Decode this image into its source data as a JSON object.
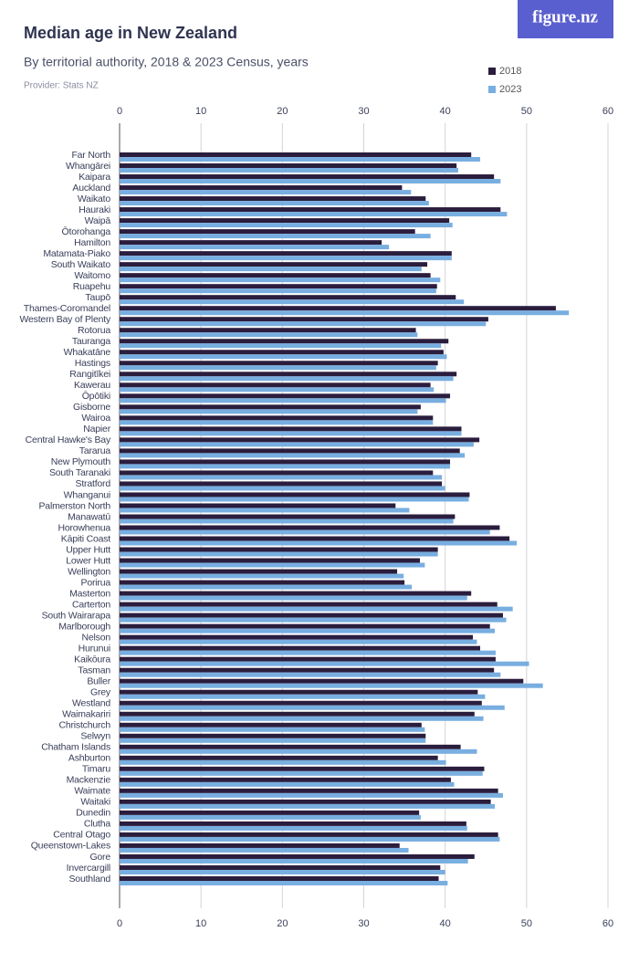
{
  "logo": "figure.nz",
  "chart_data": {
    "type": "barh",
    "title": "Median age in New Zealand",
    "subtitle": "By territorial authority, 2018 & 2023 Census, years",
    "provider": "Provider: Stats NZ",
    "categories": [
      "Far North",
      "Whangārei",
      "Kaipara",
      "Auckland",
      "Waikato",
      "Hauraki",
      "Waipā",
      "Ōtorohanga",
      "Hamilton",
      "Matamata-Piako",
      "South Waikato",
      "Waitomo",
      "Ruapehu",
      "Taupō",
      "Thames-Coromandel",
      "Western Bay of Plenty",
      "Rotorua",
      "Tauranga",
      "Whakatāne",
      "Hastings",
      "Rangitīkei",
      "Kawerau",
      "Ōpōtiki",
      "Gisborne",
      "Wairoa",
      "Napier",
      "Central Hawke's Bay",
      "Tararua",
      "New Plymouth",
      "South Taranaki",
      "Stratford",
      "Whanganui",
      "Palmerston North",
      "Manawatū",
      "Horowhenua",
      "Kāpiti Coast",
      "Upper Hutt",
      "Lower Hutt",
      "Wellington",
      "Porirua",
      "Masterton",
      "Carterton",
      "South Wairarapa",
      "Marlborough",
      "Nelson",
      "Hurunui",
      "Kaikōura",
      "Tasman",
      "Buller",
      "Grey",
      "Westland",
      "Waimakariri",
      "Christchurch",
      "Selwyn",
      "Chatham Islands",
      "Ashburton",
      "Timaru",
      "Mackenzie",
      "Waimate",
      "Waitaki",
      "Dunedin",
      "Clutha",
      "Central Otago",
      "Queenstown-Lakes",
      "Gore",
      "Invercargill",
      "Southland"
    ],
    "series": [
      {
        "name": "2018",
        "color": "#2b1d3d",
        "values": [
          43.2,
          41.4,
          46.0,
          34.7,
          37.6,
          46.8,
          40.5,
          36.3,
          32.2,
          40.8,
          37.8,
          38.2,
          39.0,
          41.3,
          53.6,
          45.3,
          36.4,
          40.4,
          39.8,
          39.1,
          41.4,
          38.2,
          40.6,
          37.0,
          38.5,
          42.0,
          44.2,
          41.8,
          40.6,
          38.5,
          39.6,
          43.0,
          33.9,
          41.2,
          46.7,
          47.9,
          39.1,
          36.9,
          34.1,
          35.0,
          43.2,
          46.4,
          47.1,
          45.5,
          43.4,
          44.3,
          46.2,
          46.0,
          49.6,
          44.0,
          44.5,
          43.6,
          37.1,
          37.6,
          41.9,
          39.1,
          44.8,
          40.7,
          46.5,
          45.6,
          36.8,
          42.6,
          46.5,
          34.4,
          43.6,
          39.4,
          39.2
        ]
      },
      {
        "name": "2023",
        "color": "#78aee0",
        "values": [
          44.3,
          41.6,
          46.8,
          35.8,
          38.0,
          47.6,
          40.9,
          38.2,
          33.1,
          40.8,
          37.1,
          39.4,
          38.9,
          42.3,
          55.2,
          45.0,
          36.6,
          39.5,
          40.2,
          38.9,
          41.0,
          38.6,
          40.1,
          36.6,
          38.5,
          42.0,
          43.5,
          42.4,
          40.6,
          39.6,
          40.0,
          42.9,
          35.6,
          41.0,
          45.5,
          48.8,
          39.1,
          37.5,
          34.9,
          35.9,
          42.7,
          48.3,
          47.5,
          46.1,
          43.9,
          46.2,
          50.3,
          46.8,
          52.0,
          44.9,
          47.3,
          44.7,
          37.5,
          37.6,
          43.9,
          40.1,
          44.6,
          41.1,
          47.1,
          46.1,
          37.0,
          42.7,
          46.7,
          35.5,
          42.8,
          40.0,
          40.3
        ]
      }
    ],
    "xlim": [
      0,
      60
    ],
    "xticks": [
      0,
      10,
      20,
      30,
      40,
      50,
      60
    ],
    "grid": true
  }
}
